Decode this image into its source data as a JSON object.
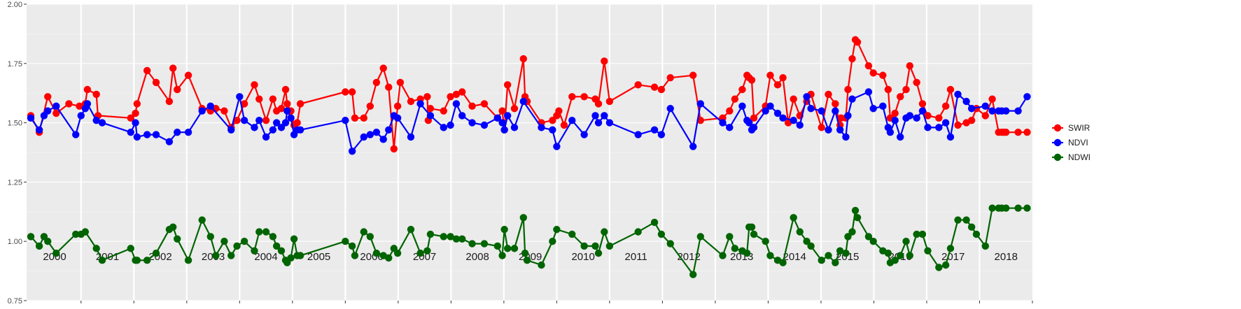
{
  "chart_data": {
    "type": "line",
    "title": "",
    "xlabel": "",
    "ylabel": "",
    "ylim": [
      0.75,
      2.0
    ],
    "xlim": [
      1999.97,
      2019.0
    ],
    "y_ticks": [
      "0.75",
      "1.00",
      "1.25",
      "1.50",
      "1.75",
      "2.00"
    ],
    "y_tick_values": [
      0.75,
      1.0,
      1.25,
      1.5,
      1.75,
      2.0
    ],
    "x_ticks": [
      "2000",
      "2001",
      "2002",
      "2003",
      "2004",
      "2005",
      "2006",
      "2007",
      "2008",
      "2009",
      "2010",
      "2011",
      "2012",
      "2013",
      "2014",
      "2015",
      "2016",
      "2017",
      "2018"
    ],
    "grid": true,
    "legend_position": "right",
    "series": [
      {
        "name": "SWIR",
        "color": "#ff0000",
        "x": [
          2000.05,
          2000.21,
          2000.37,
          2000.53,
          2000.77,
          2000.97,
          2001.08,
          2001.12,
          2001.29,
          2001.32,
          2001.94,
          2002.03,
          2002.06,
          2002.25,
          2002.42,
          2002.67,
          2002.74,
          2002.82,
          2003.03,
          2003.29,
          2003.45,
          2003.55,
          2003.71,
          2003.84,
          2003.95,
          2004.09,
          2004.28,
          2004.37,
          2004.5,
          2004.63,
          2004.7,
          2004.79,
          2004.87,
          2004.9,
          2004.97,
          2005.03,
          2005.09,
          2005.15,
          2006.0,
          2006.13,
          2006.18,
          2006.35,
          2006.47,
          2006.59,
          2006.72,
          2006.82,
          2006.92,
          2006.99,
          2007.04,
          2007.24,
          2007.42,
          2007.55,
          2007.57,
          2007.61,
          2007.86,
          2007.99,
          2008.1,
          2008.21,
          2008.4,
          2008.63,
          2008.88,
          2008.97,
          2009.01,
          2009.07,
          2009.2,
          2009.37,
          2009.4,
          2009.44,
          2009.71,
          2009.92,
          2010.0,
          2010.04,
          2010.14,
          2010.29,
          2010.52,
          2010.73,
          2010.79,
          2010.9,
          2011.0,
          2011.54,
          2011.85,
          2011.98,
          2012.15,
          2012.58,
          2012.72,
          2013.14,
          2013.27,
          2013.37,
          2013.51,
          2013.6,
          2013.64,
          2013.69,
          2013.73,
          2013.95,
          2014.04,
          2014.18,
          2014.28,
          2014.38,
          2014.48,
          2014.6,
          2014.73,
          2014.81,
          2015.01,
          2015.14,
          2015.27,
          2015.36,
          2015.38,
          2015.47,
          2015.51,
          2015.59,
          2015.65,
          2015.69,
          2015.9,
          2015.99,
          2016.17,
          2016.27,
          2016.31,
          2016.4,
          2016.5,
          2016.61,
          2016.68,
          2016.81,
          2016.92,
          2017.02,
          2017.23,
          2017.36,
          2017.45,
          2017.59,
          2017.75,
          2017.85,
          2017.94,
          2018.11,
          2018.24,
          2018.36,
          2018.42,
          2018.46,
          2018.5,
          2018.73,
          2018.9,
          2019.0,
          2019.1,
          2019.2,
          2019.3,
          2019.4
        ],
        "values": [
          1.53,
          1.46,
          1.61,
          1.54,
          1.58,
          1.57,
          1.58,
          1.64,
          1.62,
          1.53,
          1.52,
          1.54,
          1.58,
          1.72,
          1.67,
          1.59,
          1.73,
          1.64,
          1.7,
          1.56,
          1.55,
          1.56,
          1.55,
          1.48,
          1.51,
          1.58,
          1.66,
          1.6,
          1.51,
          1.6,
          1.55,
          1.56,
          1.64,
          1.58,
          1.55,
          1.49,
          1.5,
          1.58,
          1.63,
          1.63,
          1.52,
          1.52,
          1.57,
          1.67,
          1.73,
          1.65,
          1.39,
          1.57,
          1.67,
          1.59,
          1.6,
          1.61,
          1.51,
          1.56,
          1.55,
          1.61,
          1.62,
          1.63,
          1.57,
          1.58,
          1.52,
          1.55,
          1.47,
          1.66,
          1.56,
          1.77,
          1.61,
          1.59,
          1.5,
          1.51,
          1.53,
          1.55,
          1.49,
          1.61,
          1.61,
          1.6,
          1.58,
          1.76,
          1.59,
          1.66,
          1.65,
          1.64,
          1.69,
          1.7,
          1.51,
          1.52,
          1.55,
          1.6,
          1.64,
          1.7,
          1.69,
          1.68,
          1.52,
          1.57,
          1.7,
          1.66,
          1.69,
          1.5,
          1.6,
          1.53,
          1.59,
          1.62,
          1.48,
          1.62,
          1.58,
          1.49,
          1.52,
          1.52,
          1.64,
          1.77,
          1.85,
          1.84,
          1.74,
          1.71,
          1.7,
          1.64,
          1.52,
          1.54,
          1.61,
          1.64,
          1.74,
          1.67,
          1.58,
          1.53,
          1.52,
          1.57,
          1.64,
          1.49,
          1.5,
          1.51,
          1.56,
          1.53,
          1.6,
          1.46,
          1.46,
          1.46,
          1.46,
          1.46,
          1.46,
          1.46,
          1.46,
          1.46,
          1.46,
          1.46
        ]
      },
      {
        "name": "NDVI",
        "color": "#0000ff",
        "x": [
          2000.05,
          2000.21,
          2000.3,
          2000.37,
          2000.53,
          2000.9,
          2001.0,
          2001.08,
          2001.12,
          2001.29,
          2001.4,
          2001.94,
          2002.03,
          2002.06,
          2002.25,
          2002.42,
          2002.67,
          2002.82,
          2003.03,
          2003.29,
          2003.45,
          2003.84,
          2004.0,
          2004.09,
          2004.28,
          2004.37,
          2004.5,
          2004.63,
          2004.7,
          2004.79,
          2004.87,
          2004.9,
          2004.97,
          2005.03,
          2005.09,
          2005.15,
          2006.0,
          2006.13,
          2006.35,
          2006.47,
          2006.59,
          2006.72,
          2006.82,
          2006.92,
          2006.99,
          2007.24,
          2007.42,
          2007.61,
          2007.86,
          2007.99,
          2008.1,
          2008.21,
          2008.4,
          2008.63,
          2008.88,
          2008.97,
          2009.01,
          2009.07,
          2009.2,
          2009.37,
          2009.71,
          2009.92,
          2010.0,
          2010.29,
          2010.52,
          2010.73,
          2010.79,
          2010.9,
          2011.0,
          2011.54,
          2011.85,
          2011.98,
          2012.15,
          2012.58,
          2012.72,
          2013.14,
          2013.27,
          2013.51,
          2013.6,
          2013.64,
          2013.69,
          2013.73,
          2013.95,
          2014.04,
          2014.18,
          2014.28,
          2014.48,
          2014.6,
          2014.73,
          2014.81,
          2015.01,
          2015.14,
          2015.27,
          2015.36,
          2015.47,
          2015.51,
          2015.59,
          2015.9,
          2015.99,
          2016.17,
          2016.27,
          2016.31,
          2016.4,
          2016.5,
          2016.61,
          2016.68,
          2016.81,
          2016.92,
          2017.02,
          2017.23,
          2017.36,
          2017.45,
          2017.59,
          2017.75,
          2017.85,
          2018.11,
          2018.24,
          2018.36,
          2018.42,
          2018.5,
          2018.73,
          2018.9,
          2019.0
        ],
        "values": [
          1.52,
          1.47,
          1.53,
          1.55,
          1.57,
          1.45,
          1.53,
          1.56,
          1.58,
          1.51,
          1.5,
          1.46,
          1.5,
          1.44,
          1.45,
          1.45,
          1.42,
          1.46,
          1.46,
          1.55,
          1.57,
          1.47,
          1.61,
          1.51,
          1.48,
          1.51,
          1.44,
          1.47,
          1.5,
          1.48,
          1.5,
          1.55,
          1.52,
          1.45,
          1.47,
          1.47,
          1.51,
          1.38,
          1.44,
          1.45,
          1.46,
          1.43,
          1.47,
          1.53,
          1.52,
          1.44,
          1.58,
          1.53,
          1.48,
          1.49,
          1.58,
          1.53,
          1.5,
          1.49,
          1.52,
          1.5,
          1.47,
          1.53,
          1.48,
          1.59,
          1.48,
          1.47,
          1.4,
          1.51,
          1.45,
          1.53,
          1.5,
          1.53,
          1.5,
          1.45,
          1.47,
          1.45,
          1.56,
          1.4,
          1.58,
          1.5,
          1.48,
          1.57,
          1.51,
          1.5,
          1.47,
          1.48,
          1.55,
          1.57,
          1.54,
          1.52,
          1.51,
          1.49,
          1.61,
          1.56,
          1.55,
          1.47,
          1.55,
          1.47,
          1.44,
          1.53,
          1.6,
          1.63,
          1.56,
          1.57,
          1.48,
          1.46,
          1.51,
          1.44,
          1.52,
          1.53,
          1.52,
          1.55,
          1.48,
          1.48,
          1.5,
          1.44,
          1.62,
          1.59,
          1.56,
          1.57,
          1.55,
          1.55,
          1.55,
          1.55,
          1.55,
          1.61,
          1.61
        ]
      },
      {
        "name": "NDWI",
        "color": "#006400",
        "x": [
          2000.05,
          2000.21,
          2000.3,
          2000.37,
          2000.53,
          2000.9,
          2001.0,
          2001.08,
          2001.29,
          2001.4,
          2001.94,
          2002.03,
          2002.06,
          2002.25,
          2002.42,
          2002.67,
          2002.74,
          2002.82,
          2003.03,
          2003.29,
          2003.45,
          2003.55,
          2003.71,
          2003.84,
          2003.95,
          2004.09,
          2004.28,
          2004.37,
          2004.5,
          2004.63,
          2004.7,
          2004.79,
          2004.87,
          2004.9,
          2004.97,
          2005.03,
          2005.09,
          2005.15,
          2006.0,
          2006.13,
          2006.18,
          2006.35,
          2006.47,
          2006.59,
          2006.72,
          2006.82,
          2006.92,
          2006.99,
          2007.24,
          2007.42,
          2007.55,
          2007.61,
          2007.86,
          2007.99,
          2008.1,
          2008.21,
          2008.4,
          2008.63,
          2008.88,
          2008.97,
          2009.01,
          2009.07,
          2009.2,
          2009.37,
          2009.4,
          2009.44,
          2009.71,
          2009.92,
          2010.0,
          2010.29,
          2010.52,
          2010.73,
          2010.79,
          2010.9,
          2011.0,
          2011.54,
          2011.85,
          2011.98,
          2012.15,
          2012.58,
          2012.72,
          2013.14,
          2013.27,
          2013.37,
          2013.51,
          2013.6,
          2013.64,
          2013.69,
          2013.73,
          2013.95,
          2014.04,
          2014.18,
          2014.28,
          2014.48,
          2014.6,
          2014.73,
          2014.81,
          2015.01,
          2015.14,
          2015.27,
          2015.36,
          2015.47,
          2015.51,
          2015.59,
          2015.65,
          2015.69,
          2015.9,
          2015.99,
          2016.17,
          2016.27,
          2016.31,
          2016.4,
          2016.5,
          2016.61,
          2016.68,
          2016.81,
          2016.92,
          2017.02,
          2017.23,
          2017.36,
          2017.45,
          2017.59,
          2017.75,
          2017.85,
          2017.94,
          2018.11,
          2018.24,
          2018.36,
          2018.42,
          2018.5,
          2018.73,
          2018.9,
          2019.0
        ],
        "values": [
          1.02,
          0.98,
          1.02,
          1.0,
          0.95,
          1.03,
          1.03,
          1.04,
          0.97,
          0.92,
          0.97,
          0.92,
          0.92,
          0.92,
          0.95,
          1.05,
          1.06,
          1.01,
          0.92,
          1.09,
          1.02,
          0.94,
          1.0,
          0.94,
          0.98,
          1.0,
          0.96,
          1.04,
          1.04,
          1.02,
          0.98,
          0.96,
          0.92,
          0.91,
          0.93,
          1.01,
          0.94,
          0.94,
          1.0,
          0.98,
          0.94,
          1.04,
          1.02,
          0.95,
          0.94,
          0.93,
          0.97,
          0.95,
          1.05,
          0.95,
          0.96,
          1.03,
          1.02,
          1.02,
          1.01,
          1.01,
          0.99,
          0.99,
          0.98,
          0.94,
          1.05,
          0.97,
          0.97,
          1.1,
          0.95,
          0.92,
          0.9,
          1.0,
          1.05,
          1.03,
          0.98,
          0.98,
          0.95,
          1.04,
          0.98,
          1.04,
          1.08,
          1.03,
          0.99,
          0.86,
          1.02,
          0.94,
          1.02,
          0.97,
          0.96,
          0.95,
          1.06,
          1.06,
          1.03,
          1.0,
          0.94,
          0.92,
          0.91,
          1.1,
          1.04,
          1.0,
          0.98,
          0.92,
          0.94,
          0.91,
          0.96,
          0.95,
          1.02,
          1.04,
          1.13,
          1.1,
          1.02,
          1.0,
          0.96,
          0.95,
          0.91,
          0.92,
          0.94,
          1.0,
          0.94,
          1.03,
          1.03,
          0.96,
          0.89,
          0.9,
          0.97,
          1.09,
          1.09,
          1.06,
          1.03,
          0.98,
          1.14,
          1.14,
          1.14,
          1.14,
          1.14,
          1.14,
          1.14
        ]
      }
    ]
  }
}
